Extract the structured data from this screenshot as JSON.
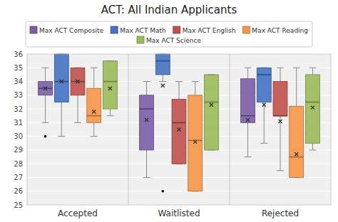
{
  "chart_data": {
    "type": "box",
    "title": "ACT: All Indian Applicants",
    "categories": [
      "Accepted",
      "Waitlisted",
      "Rejected"
    ],
    "series": [
      {
        "name": "Max ACT Composite",
        "color": "#7B5EA7",
        "values": [
          {
            "whislo": 31.0,
            "q1": 33.0,
            "med": 33.5,
            "q3": 34.0,
            "whishi": 35.0,
            "mean": 33.5,
            "fliers": [
              30.0
            ]
          },
          {
            "whislo": 27.0,
            "q1": 29.0,
            "med": 32.0,
            "q3": 33.0,
            "whishi": 34.0,
            "mean": 31.2
          },
          {
            "whislo": 28.5,
            "q1": 31.0,
            "med": 31.5,
            "q3": 34.2,
            "whishi": 35.0,
            "mean": 31.2
          }
        ]
      },
      {
        "name": "Max ACT Math",
        "color": "#4472C4",
        "values": [
          {
            "whislo": 30.0,
            "q1": 32.5,
            "med": 34.0,
            "q3": 36.0,
            "whishi": 36.0,
            "mean": 34.0
          },
          {
            "whislo": 34.0,
            "q1": 34.5,
            "med": 35.5,
            "q3": 36.0,
            "whishi": 36.0,
            "mean": 33.7,
            "fliers": [
              26.0
            ]
          },
          {
            "whislo": 29.5,
            "q1": 32.5,
            "med": 34.5,
            "q3": 35.0,
            "whishi": 35.0,
            "mean": 32.3
          }
        ]
      },
      {
        "name": "Max ACT English",
        "color": "#C0504D",
        "values": [
          {
            "whislo": 31.0,
            "q1": 33.0,
            "med": 34.0,
            "q3": 35.0,
            "whishi": 35.0,
            "mean": 34.0
          },
          {
            "whislo": 28.0,
            "q1": 28.0,
            "med": 31.0,
            "q3": 32.7,
            "whishi": 34.0,
            "mean": 30.5
          },
          {
            "whislo": 27.5,
            "q1": 31.5,
            "med": 31.5,
            "q3": 34.0,
            "whishi": 35.0,
            "mean": 31.1
          }
        ]
      },
      {
        "name": "Max ACT Reading",
        "color": "#F79646",
        "values": [
          {
            "whislo": 30.0,
            "q1": 31.0,
            "med": 31.5,
            "q3": 33.5,
            "whishi": 35.0,
            "mean": 31.8
          },
          {
            "whislo": 26.0,
            "q1": 26.0,
            "med": 29.7,
            "q3": 33.0,
            "whishi": 34.0,
            "mean": 29.6
          },
          {
            "whislo": 27.0,
            "q1": 27.0,
            "med": 28.5,
            "q3": 32.2,
            "whishi": 35.0,
            "mean": 28.7
          }
        ]
      },
      {
        "name": "Max ACT Science",
        "color": "#9BBB59",
        "values": [
          {
            "whislo": 31.5,
            "q1": 32.0,
            "med": 34.0,
            "q3": 35.5,
            "whishi": 35.5,
            "mean": 33.5
          },
          {
            "whislo": 29.0,
            "q1": 29.0,
            "med": 32.5,
            "q3": 34.5,
            "whishi": 34.5,
            "mean": 32.3
          },
          {
            "whislo": 29.0,
            "q1": 29.5,
            "med": 32.5,
            "q3": 34.5,
            "whishi": 35.0,
            "mean": 32.1
          }
        ]
      }
    ],
    "ylim": [
      25,
      36
    ],
    "yticks": [
      25,
      26,
      27,
      28,
      29,
      30,
      31,
      32,
      33,
      34,
      35,
      36
    ],
    "grid": true,
    "legend": "top"
  }
}
